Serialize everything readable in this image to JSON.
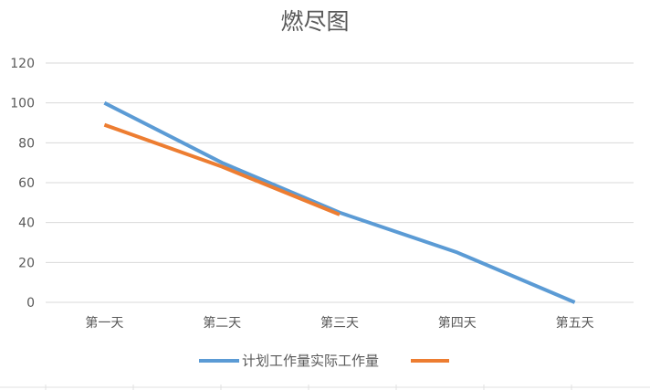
{
  "chart_data": {
    "type": "line",
    "title": "燃尽图",
    "categories": [
      "第一天",
      "第二天",
      "第三天",
      "第四天",
      "第五天"
    ],
    "ylim": [
      0,
      120
    ],
    "yticks": [
      0,
      20,
      40,
      60,
      80,
      100,
      120
    ],
    "grid": true,
    "legend_position": "bottom",
    "legend_label": "计划工作量实际工作量",
    "series": [
      {
        "key": "plan",
        "values": [
          100,
          70,
          45,
          25,
          0
        ],
        "color": "#5B9BD5"
      },
      {
        "key": "actual",
        "values": [
          89,
          68,
          44,
          null,
          null
        ],
        "color": "#ED7D31"
      }
    ]
  }
}
